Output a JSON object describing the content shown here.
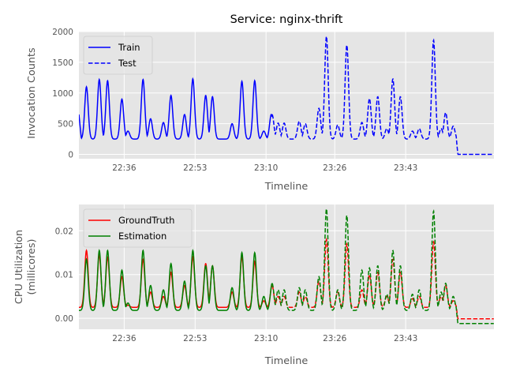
{
  "chart_data": [
    {
      "type": "line",
      "title": "Service: nginx-thrift",
      "xlabel": "Timeline",
      "ylabel": "Invocation Counts",
      "xlim": [
        0,
        1
      ],
      "ylim": [
        -70,
        2000
      ],
      "yticks": [
        0,
        500,
        1000,
        1500,
        2000
      ],
      "xticks": [
        {
          "pos": 0.1091,
          "label": "22:36"
        },
        {
          "pos": 0.28,
          "label": "22:53"
        },
        {
          "pos": 0.4509,
          "label": "23:10"
        },
        {
          "pos": 0.6164,
          "label": "23:26"
        },
        {
          "pos": 0.7873,
          "label": "23:43"
        }
      ],
      "grid": true,
      "legend_position": "top-left",
      "series": [
        {
          "name": "Train",
          "color": "#0000ff",
          "dash": "solid",
          "kind": "peaks",
          "x_range": [
            0,
            0.4655
          ],
          "baseline": 250,
          "start_value": 650,
          "peaks": [
            [
              0.0182,
              1100
            ],
            [
              0.0491,
              1220
            ],
            [
              0.0691,
              1200
            ],
            [
              0.1036,
              900
            ],
            [
              0.1182,
              380
            ],
            [
              0.1545,
              1220
            ],
            [
              0.1727,
              580
            ],
            [
              0.2036,
              520
            ],
            [
              0.2218,
              960
            ],
            [
              0.2545,
              650
            ],
            [
              0.2745,
              1230
            ],
            [
              0.3055,
              960
            ],
            [
              0.3218,
              940
            ],
            [
              0.3691,
              500
            ],
            [
              0.3927,
              1190
            ],
            [
              0.4236,
              1200
            ],
            [
              0.4455,
              380
            ],
            [
              0.4636,
              650
            ]
          ]
        },
        {
          "name": "Test",
          "color": "#0000ff",
          "dash": "dashed",
          "kind": "peaks",
          "x_range": [
            0.4655,
            1
          ],
          "baseline": 250,
          "tail_from": 0.9091,
          "tail_value": 0,
          "peaks": [
            [
              0.4655,
              650
            ],
            [
              0.48,
              510
            ],
            [
              0.4945,
              510
            ],
            [
              0.5309,
              540
            ],
            [
              0.5455,
              500
            ],
            [
              0.5782,
              750
            ],
            [
              0.5964,
              1920
            ],
            [
              0.6236,
              480
            ],
            [
              0.6455,
              1780
            ],
            [
              0.6818,
              520
            ],
            [
              0.7,
              910
            ],
            [
              0.72,
              940
            ],
            [
              0.7418,
              420
            ],
            [
              0.7564,
              1230
            ],
            [
              0.7745,
              940
            ],
            [
              0.8036,
              380
            ],
            [
              0.82,
              420
            ],
            [
              0.8545,
              1860
            ],
            [
              0.8727,
              420
            ],
            [
              0.8836,
              680
            ],
            [
              0.9018,
              460
            ]
          ]
        }
      ]
    },
    {
      "type": "line",
      "title": "",
      "xlabel": "Timeline",
      "ylabel": "CPU Utilization (millicores)",
      "ylabel_lines": [
        "CPU Utilization",
        "(millicores)"
      ],
      "xlim": [
        0,
        1
      ],
      "ylim": [
        -0.0025,
        0.026
      ],
      "yticks": [
        0.0,
        0.01,
        0.02
      ],
      "ytick_labels": [
        "0.00",
        "0.01",
        "0.02"
      ],
      "xticks": [
        {
          "pos": 0.1091,
          "label": "22:36"
        },
        {
          "pos": 0.28,
          "label": "22:53"
        },
        {
          "pos": 0.4509,
          "label": "23:10"
        },
        {
          "pos": 0.6164,
          "label": "23:26"
        },
        {
          "pos": 0.7873,
          "label": "23:43"
        }
      ],
      "grid": true,
      "legend_position": "top-left",
      "series": [
        {
          "name": "GroundTruth",
          "color": "#ff0000",
          "dash": "solid",
          "dash_after": 0.4655,
          "kind": "peaks",
          "x_range": [
            0,
            1
          ],
          "baseline": 0.0025,
          "tail_from": 0.9091,
          "tail_value": -0.0001,
          "peaks": [
            [
              0.0182,
              0.0155
            ],
            [
              0.0491,
              0.0145
            ],
            [
              0.0691,
              0.014
            ],
            [
              0.1036,
              0.0095
            ],
            [
              0.1182,
              0.003
            ],
            [
              0.1545,
              0.0135
            ],
            [
              0.1727,
              0.006
            ],
            [
              0.2036,
              0.005
            ],
            [
              0.2218,
              0.0105
            ],
            [
              0.2545,
              0.0075
            ],
            [
              0.2745,
              0.014
            ],
            [
              0.3055,
              0.0125
            ],
            [
              0.3218,
              0.012
            ],
            [
              0.3691,
              0.006
            ],
            [
              0.3927,
              0.014
            ],
            [
              0.4236,
              0.013
            ],
            [
              0.4455,
              0.004
            ],
            [
              0.4655,
              0.0075
            ],
            [
              0.48,
              0.005
            ],
            [
              0.4945,
              0.005
            ],
            [
              0.5309,
              0.006
            ],
            [
              0.5455,
              0.005
            ],
            [
              0.5782,
              0.0085
            ],
            [
              0.5964,
              0.018
            ],
            [
              0.6236,
              0.006
            ],
            [
              0.6455,
              0.017
            ],
            [
              0.6818,
              0.0065
            ],
            [
              0.7,
              0.01
            ],
            [
              0.72,
              0.0105
            ],
            [
              0.7418,
              0.005
            ],
            [
              0.7564,
              0.0135
            ],
            [
              0.7745,
              0.0105
            ],
            [
              0.8036,
              0.0045
            ],
            [
              0.82,
              0.005
            ],
            [
              0.8545,
              0.0175
            ],
            [
              0.8727,
              0.005
            ],
            [
              0.8836,
              0.0075
            ],
            [
              0.9018,
              0.004
            ]
          ]
        },
        {
          "name": "Estimation",
          "color": "#008000",
          "dash": "solid",
          "dash_after": 0.4655,
          "kind": "peaks",
          "x_range": [
            0,
            1
          ],
          "baseline": 0.0018,
          "tail_from": 0.9091,
          "tail_value": -0.0012,
          "peaks": [
            [
              0.0182,
              0.0135
            ],
            [
              0.0491,
              0.0155
            ],
            [
              0.0691,
              0.0155
            ],
            [
              0.1036,
              0.011
            ],
            [
              0.1182,
              0.0035
            ],
            [
              0.1545,
              0.0155
            ],
            [
              0.1727,
              0.0075
            ],
            [
              0.2036,
              0.0065
            ],
            [
              0.2218,
              0.0125
            ],
            [
              0.2545,
              0.0085
            ],
            [
              0.2745,
              0.0155
            ],
            [
              0.3055,
              0.012
            ],
            [
              0.3218,
              0.012
            ],
            [
              0.3691,
              0.007
            ],
            [
              0.3927,
              0.015
            ],
            [
              0.4236,
              0.015
            ],
            [
              0.4455,
              0.005
            ],
            [
              0.4655,
              0.008
            ],
            [
              0.48,
              0.0065
            ],
            [
              0.4945,
              0.0065
            ],
            [
              0.5309,
              0.007
            ],
            [
              0.5455,
              0.0065
            ],
            [
              0.5782,
              0.0095
            ],
            [
              0.5964,
              0.025
            ],
            [
              0.6236,
              0.0065
            ],
            [
              0.6455,
              0.0235
            ],
            [
              0.6818,
              0.011
            ],
            [
              0.7,
              0.0115
            ],
            [
              0.72,
              0.012
            ],
            [
              0.7418,
              0.0055
            ],
            [
              0.7564,
              0.0155
            ],
            [
              0.7745,
              0.012
            ],
            [
              0.8036,
              0.0055
            ],
            [
              0.82,
              0.0065
            ],
            [
              0.8545,
              0.0245
            ],
            [
              0.8727,
              0.006
            ],
            [
              0.8836,
              0.008
            ],
            [
              0.9018,
              0.005
            ]
          ]
        }
      ]
    }
  ]
}
